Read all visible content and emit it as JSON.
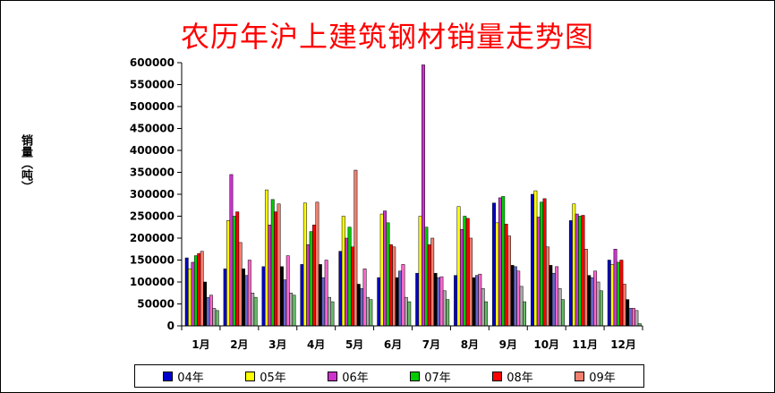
{
  "chart_data": {
    "type": "bar",
    "title": "农历年沪上建筑钢材销量走势图",
    "ylabel": "销量（吨）",
    "xlabel": "",
    "ylim": [
      0,
      600000
    ],
    "yticks": [
      0,
      50000,
      100000,
      150000,
      200000,
      250000,
      300000,
      350000,
      400000,
      450000,
      500000,
      550000,
      600000
    ],
    "grid": false,
    "legend_position": "bottom",
    "categories": [
      "1月",
      "2月",
      "3月",
      "4月",
      "5月",
      "6月",
      "7月",
      "8月",
      "9月",
      "10月",
      "11月",
      "12月"
    ],
    "series": [
      {
        "name": "04年",
        "color": "#0000cc",
        "values": [
          155000,
          130000,
          135000,
          140000,
          170000,
          110000,
          120000,
          115000,
          280000,
          300000,
          240000,
          150000
        ]
      },
      {
        "name": "05年",
        "color": "#ffff00",
        "values": [
          130000,
          240000,
          310000,
          280000,
          250000,
          255000,
          250000,
          272000,
          235000,
          308000,
          278000,
          140000
        ]
      },
      {
        "name": "06年",
        "color": "#cc33cc",
        "values": [
          145000,
          345000,
          230000,
          185000,
          200000,
          262000,
          595000,
          220000,
          292000,
          248000,
          255000,
          175000
        ]
      },
      {
        "name": "07年",
        "color": "#00cc00",
        "values": [
          160000,
          250000,
          288000,
          215000,
          225000,
          235000,
          225000,
          250000,
          295000,
          282000,
          250000,
          145000
        ]
      },
      {
        "name": "08年",
        "color": "#ff0000",
        "values": [
          165000,
          260000,
          260000,
          230000,
          180000,
          185000,
          185000,
          245000,
          232000,
          290000,
          252000,
          150000
        ]
      },
      {
        "name": "09年",
        "color": "#f08070",
        "values": [
          170000,
          190000,
          278000,
          282000,
          355000,
          180000,
          200000,
          200000,
          205000,
          180000,
          175000,
          95000
        ]
      },
      {
        "name": "",
        "color": "#000000",
        "values": [
          100000,
          130000,
          135000,
          140000,
          95000,
          110000,
          120000,
          110000,
          138000,
          138000,
          115000,
          60000
        ]
      },
      {
        "name": "",
        "color": "#6666cc",
        "values": [
          65000,
          115000,
          105000,
          110000,
          85000,
          125000,
          110000,
          115000,
          135000,
          120000,
          110000,
          40000
        ]
      },
      {
        "name": "",
        "color": "#ff66cc",
        "values": [
          70000,
          150000,
          160000,
          150000,
          130000,
          140000,
          112000,
          118000,
          125000,
          135000,
          125000,
          40000
        ]
      },
      {
        "name": "",
        "color": "#aaaaaa",
        "values": [
          40000,
          75000,
          75000,
          65000,
          65000,
          65000,
          80000,
          85000,
          90000,
          85000,
          100000,
          35000
        ]
      },
      {
        "name": "",
        "color": "#66bb66",
        "values": [
          35000,
          65000,
          70000,
          55000,
          60000,
          55000,
          60000,
          55000,
          55000,
          60000,
          80000,
          5000
        ]
      }
    ]
  }
}
